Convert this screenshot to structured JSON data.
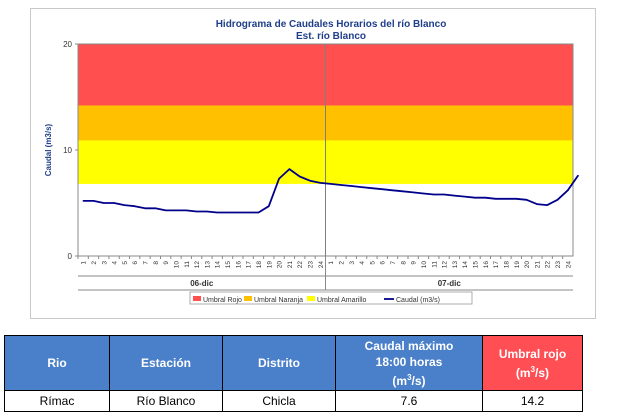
{
  "chart_data": {
    "type": "line",
    "title": "Hidrograma de Caudales Horarios del río Blanco",
    "subtitle": "Est. río Blanco",
    "ylabel": "Caudal  (m3/s)",
    "ylim": [
      0,
      20
    ],
    "yticks": [
      "0",
      "10",
      "20"
    ],
    "thresholds": [
      {
        "name": "Umbral Rojo",
        "value": 14.2,
        "color": "#ff4f4f"
      },
      {
        "name": "Umbral Naranja",
        "value": 10.9,
        "color": "#ffc000"
      },
      {
        "name": "Umbral Amarillo",
        "value": 6.8,
        "color": "#ffff00"
      }
    ],
    "day_labels": [
      "06-dic",
      "07-dic"
    ],
    "hour_ticks": [
      "1",
      "2",
      "3",
      "4",
      "5",
      "6",
      "7",
      "8",
      "9",
      "10",
      "11",
      "12",
      "13",
      "14",
      "15",
      "16",
      "17",
      "18",
      "19",
      "20",
      "21",
      "22",
      "23",
      "24"
    ],
    "series": [
      {
        "name": "Caudal (m3/s)",
        "color": "#00008b",
        "values": [
          5.2,
          5.2,
          5.0,
          5.0,
          4.8,
          4.7,
          4.5,
          4.5,
          4.3,
          4.3,
          4.3,
          4.2,
          4.2,
          4.1,
          4.1,
          4.1,
          4.1,
          4.1,
          4.7,
          7.3,
          8.2,
          7.5,
          7.1,
          6.9,
          6.8,
          6.7,
          6.6,
          6.5,
          6.4,
          6.3,
          6.2,
          6.1,
          6.0,
          5.9,
          5.8,
          5.8,
          5.7,
          5.6,
          5.5,
          5.5,
          5.4,
          5.4,
          5.4,
          5.3,
          4.9,
          4.8,
          5.3,
          6.2,
          7.6
        ]
      }
    ],
    "legend": [
      "Umbral Rojo",
      "Umbral Naranja",
      "Umbral Amarillo",
      "Caudal (m3/s)"
    ],
    "legend_position": "bottom"
  },
  "table": {
    "headers": {
      "rio": "Rio",
      "estacion": "Estación",
      "distrito": "Distrito",
      "caudal_line1": "Caudal máximo",
      "caudal_line2": "18:00 horas",
      "caudal_unit_pre": "(m",
      "caudal_unit_sup": "3",
      "caudal_unit_post": "/s)",
      "umbral_line1": "Umbral rojo",
      "umbral_unit_pre": "(m",
      "umbral_unit_sup": "3",
      "umbral_unit_post": "/s)"
    },
    "row": {
      "rio": "Rímac",
      "estacion": "Río Blanco",
      "distrito": "Chicla",
      "caudal_maximo": "7.6",
      "umbral_rojo": "14.2"
    }
  }
}
